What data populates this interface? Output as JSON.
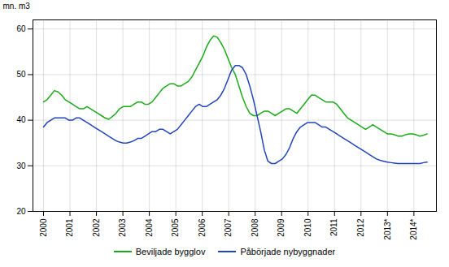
{
  "chart_data": {
    "type": "line",
    "ylabel": "mn. m3",
    "x": [
      2000,
      2000.1368,
      2000.2736,
      2000.4104,
      2000.5472,
      2000.684,
      2000.8208,
      2000.9575,
      2001.0943,
      2001.2311,
      2001.3679,
      2001.5047,
      2001.6415,
      2001.7783,
      2001.9151,
      2002.0519,
      2002.1887,
      2002.3255,
      2002.4623,
      2002.5991,
      2002.7358,
      2002.8726,
      2003.0094,
      2003.1462,
      2003.283,
      2003.4198,
      2003.5566,
      2003.6934,
      2003.8302,
      2003.967,
      2004.1038,
      2004.2406,
      2004.3774,
      2004.5142,
      2004.6509,
      2004.7877,
      2004.9245,
      2005.0613,
      2005.1981,
      2005.3349,
      2005.4717,
      2005.6085,
      2005.7453,
      2005.8821,
      2006.0189,
      2006.1557,
      2006.2925,
      2006.4292,
      2006.566,
      2006.7028,
      2006.8396,
      2006.9764,
      2007.1132,
      2007.25,
      2007.3868,
      2007.5236,
      2007.6604,
      2007.7972,
      2007.934,
      2008.0708,
      2008.2075,
      2008.3443,
      2008.4811,
      2008.6179,
      2008.7547,
      2008.8915,
      2009.0283,
      2009.1651,
      2009.3019,
      2009.4387,
      2009.5755,
      2009.7123,
      2009.8491,
      2009.9858,
      2010.1226,
      2010.2594,
      2010.3962,
      2010.533,
      2010.6698,
      2010.8066,
      2010.9434,
      2011.0802,
      2011.217,
      2011.3538,
      2011.4906,
      2011.6274,
      2011.7642,
      2011.9009,
      2012.0377,
      2012.1745,
      2012.3113,
      2012.4481,
      2012.5849,
      2012.7217,
      2012.8585,
      2012.9953,
      2013.1321,
      2013.2689,
      2013.4057,
      2013.5425,
      2013.6792,
      2013.816,
      2013.9528,
      2014.0896,
      2014.2264,
      2014.3632,
      2014.5
    ],
    "series": [
      {
        "name": "Beviljade bygglov",
        "color": "#1aab1a",
        "values": [
          44.0,
          44.5,
          45.5,
          46.5,
          46.2,
          45.5,
          44.5,
          44.0,
          43.5,
          43.0,
          42.5,
          42.5,
          43.0,
          42.5,
          42.0,
          41.5,
          41.0,
          40.5,
          40.2,
          40.8,
          41.5,
          42.5,
          43.0,
          43.0,
          43.0,
          43.5,
          44.0,
          44.0,
          43.5,
          43.5,
          44.0,
          45.0,
          46.0,
          47.0,
          47.5,
          48.0,
          48.0,
          47.5,
          47.5,
          48.0,
          48.5,
          49.5,
          51.0,
          52.5,
          54.0,
          56.0,
          57.5,
          58.5,
          58.2,
          57.0,
          55.5,
          53.5,
          51.5,
          50.0,
          47.5,
          45.0,
          43.0,
          41.5,
          41.0,
          41.0,
          41.5,
          42.0,
          42.0,
          41.5,
          41.0,
          41.5,
          42.0,
          42.5,
          42.5,
          42.0,
          41.5,
          42.5,
          43.5,
          44.5,
          45.5,
          45.5,
          45.0,
          44.5,
          44.0,
          44.0,
          44.0,
          43.5,
          42.5,
          41.5,
          40.5,
          40.0,
          39.5,
          39.0,
          38.5,
          38.0,
          38.5,
          39.0,
          38.5,
          38.0,
          37.5,
          37.0,
          37.0,
          36.8,
          36.5,
          36.5,
          36.8,
          37.0,
          37.0,
          36.8,
          36.5,
          36.7,
          37.0
        ]
      },
      {
        "name": "Påbörjade nybyggnader",
        "color": "#2244bb",
        "values": [
          38.5,
          39.5,
          40.0,
          40.5,
          40.5,
          40.5,
          40.5,
          40.0,
          40.0,
          40.5,
          40.5,
          40.0,
          39.5,
          39.0,
          38.5,
          38.0,
          37.5,
          37.0,
          36.5,
          36.0,
          35.5,
          35.2,
          35.0,
          35.0,
          35.2,
          35.5,
          36.0,
          36.0,
          36.5,
          37.0,
          37.5,
          37.5,
          38.0,
          38.0,
          37.5,
          37.0,
          37.5,
          38.0,
          39.0,
          40.0,
          41.0,
          42.0,
          43.0,
          43.5,
          43.0,
          43.0,
          43.5,
          44.0,
          44.5,
          45.5,
          47.0,
          49.0,
          51.0,
          52.0,
          52.0,
          51.5,
          50.0,
          47.5,
          44.5,
          41.0,
          37.5,
          33.5,
          31.0,
          30.5,
          30.5,
          31.0,
          31.5,
          32.5,
          34.0,
          36.0,
          37.5,
          38.5,
          39.0,
          39.5,
          39.5,
          39.5,
          39.0,
          38.5,
          38.5,
          38.0,
          37.5,
          37.0,
          36.5,
          36.0,
          35.5,
          35.0,
          34.5,
          34.0,
          33.5,
          33.0,
          32.5,
          32.0,
          31.5,
          31.2,
          31.0,
          30.8,
          30.7,
          30.6,
          30.5,
          30.5,
          30.5,
          30.5,
          30.5,
          30.5,
          30.5,
          30.7,
          30.8
        ]
      }
    ],
    "xlim": [
      1999.6,
      2014.85
    ],
    "xticks": [
      2000,
      2001,
      2002,
      2003,
      2004,
      2005,
      2006,
      2007,
      2008,
      2009,
      2010,
      2011,
      2012,
      {
        "value": 2013,
        "label": "2013*"
      },
      {
        "value": 2014,
        "label": "2014*"
      }
    ],
    "ylim": [
      20,
      62
    ],
    "yticks": [
      20,
      30,
      40,
      50,
      60
    ],
    "grid": true,
    "legend": "bottom"
  }
}
